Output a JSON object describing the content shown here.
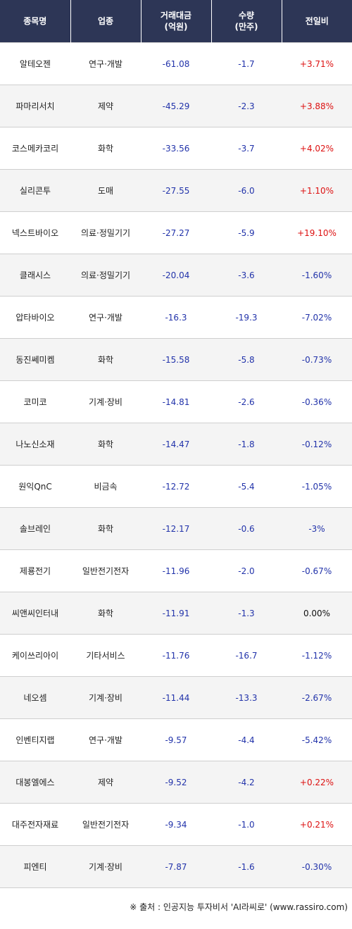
{
  "columns": {
    "name": "종목명",
    "sector": "업종",
    "amount_line1": "거래대금",
    "amount_line2": "(억원)",
    "volume_line1": "수량",
    "volume_line2": "(만주)",
    "change": "전일비"
  },
  "rows": [
    {
      "name": "알테오젠",
      "sector": "연구·개발",
      "amount": "-61.08",
      "volume": "-1.7",
      "change": "+3.71%"
    },
    {
      "name": "파마리서치",
      "sector": "제약",
      "amount": "-45.29",
      "volume": "-2.3",
      "change": "+3.88%"
    },
    {
      "name": "코스메카코리",
      "sector": "화학",
      "amount": "-33.56",
      "volume": "-3.7",
      "change": "+4.02%"
    },
    {
      "name": "실리콘투",
      "sector": "도매",
      "amount": "-27.55",
      "volume": "-6.0",
      "change": "+1.10%"
    },
    {
      "name": "넥스트바이오",
      "sector": "의료·정밀기기",
      "amount": "-27.27",
      "volume": "-5.9",
      "change": "+19.10%"
    },
    {
      "name": "클래시스",
      "sector": "의료·정밀기기",
      "amount": "-20.04",
      "volume": "-3.6",
      "change": "-1.60%"
    },
    {
      "name": "압타바이오",
      "sector": "연구·개발",
      "amount": "-16.3",
      "volume": "-19.3",
      "change": "-7.02%"
    },
    {
      "name": "동진쎄미켐",
      "sector": "화학",
      "amount": "-15.58",
      "volume": "-5.8",
      "change": "-0.73%"
    },
    {
      "name": "코미코",
      "sector": "기계·장비",
      "amount": "-14.81",
      "volume": "-2.6",
      "change": "-0.36%"
    },
    {
      "name": "나노신소재",
      "sector": "화학",
      "amount": "-14.47",
      "volume": "-1.8",
      "change": "-0.12%"
    },
    {
      "name": "원익QnC",
      "sector": "비금속",
      "amount": "-12.72",
      "volume": "-5.4",
      "change": "-1.05%"
    },
    {
      "name": "솔브레인",
      "sector": "화학",
      "amount": "-12.17",
      "volume": "-0.6",
      "change": "-3%"
    },
    {
      "name": "제룡전기",
      "sector": "일반전기전자",
      "amount": "-11.96",
      "volume": "-2.0",
      "change": "-0.67%"
    },
    {
      "name": "씨앤씨인터내",
      "sector": "화학",
      "amount": "-11.91",
      "volume": "-1.3",
      "change": "0.00%"
    },
    {
      "name": "케이쓰리아이",
      "sector": "기타서비스",
      "amount": "-11.76",
      "volume": "-16.7",
      "change": "-1.12%"
    },
    {
      "name": "네오셈",
      "sector": "기계·장비",
      "amount": "-11.44",
      "volume": "-13.3",
      "change": "-2.67%"
    },
    {
      "name": "인벤티지랩",
      "sector": "연구·개발",
      "amount": "-9.57",
      "volume": "-4.4",
      "change": "-5.42%"
    },
    {
      "name": "대봉엘에스",
      "sector": "제약",
      "amount": "-9.52",
      "volume": "-4.2",
      "change": "+0.22%"
    },
    {
      "name": "대주전자재료",
      "sector": "일반전기전자",
      "amount": "-9.34",
      "volume": "-1.0",
      "change": "+0.21%"
    },
    {
      "name": "피엔티",
      "sector": "기계·장비",
      "amount": "-7.87",
      "volume": "-1.6",
      "change": "-0.30%"
    }
  ],
  "source": "※ 출처 : 인공지능 투자비서 'AI라씨로' (www.rassiro.com)",
  "colors": {
    "header_bg": "#2d3656",
    "up": "#dd1111",
    "down": "#2233aa",
    "neutral": "#111111"
  }
}
